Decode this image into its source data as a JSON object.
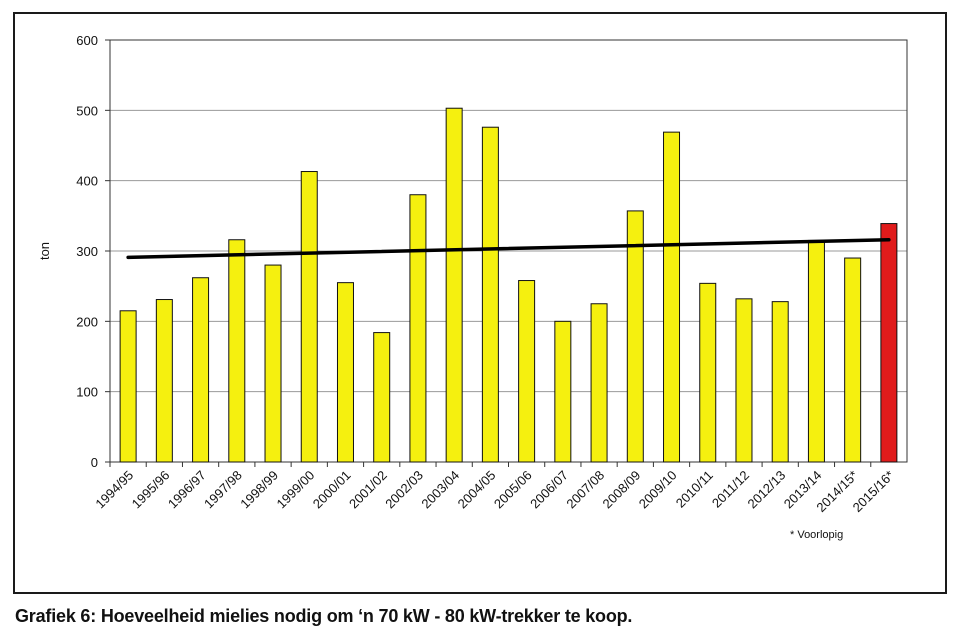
{
  "caption": "Grafiek 6: Hoeveelheid mielies nodig om ‘n 70 kW - 80 kW-trekker te koop.",
  "note": "* Voorlopig",
  "chart_data": {
    "type": "bar",
    "title": "",
    "xlabel": "",
    "ylabel": "ton",
    "ylim": [
      0,
      600
    ],
    "yticks": [
      0,
      100,
      200,
      300,
      400,
      500,
      600
    ],
    "grid": true,
    "categories": [
      "1994/95",
      "1995/96",
      "1996/97",
      "1997/98",
      "1998/99",
      "1999/00",
      "2000/01",
      "2001/02",
      "2002/03",
      "2003/04",
      "2004/05",
      "2005/06",
      "2006/07",
      "2007/08",
      "2008/09",
      "2009/10",
      "2010/11",
      "2011/12",
      "2012/13",
      "2013/14",
      "2014/15*",
      "2015/16*"
    ],
    "values": [
      215,
      231,
      262,
      316,
      280,
      413,
      255,
      184,
      380,
      503,
      476,
      258,
      200,
      225,
      357,
      469,
      254,
      232,
      228,
      315,
      290,
      339
    ],
    "bar_color": "#f5f00f",
    "highlight_color": "#e01b1b",
    "highlight_index": 21,
    "trendline": {
      "start": 291,
      "end": 316,
      "color": "#000000"
    }
  }
}
